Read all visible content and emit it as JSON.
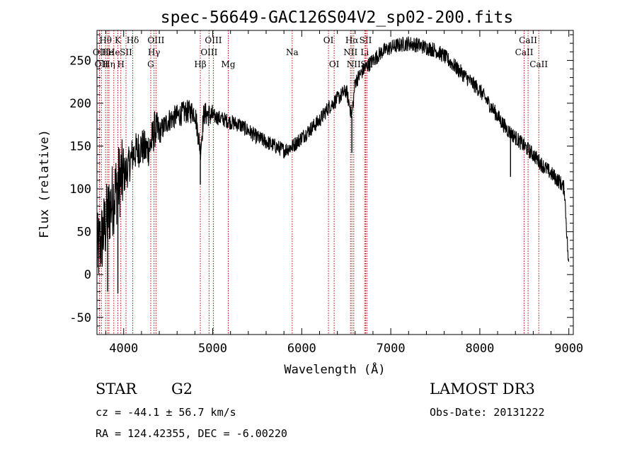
{
  "chart_data": {
    "type": "line",
    "title": "spec-56649-GAC126S04V2_sp02-200.fits",
    "xlabel": "Wavelength (Å)",
    "ylabel": "Flux (relative)",
    "xlim": [
      3700,
      9050
    ],
    "ylim": [
      -70,
      285
    ],
    "x_ticks": [
      4000,
      5000,
      6000,
      7000,
      8000,
      9000
    ],
    "y_ticks": [
      -50,
      0,
      50,
      100,
      150,
      200,
      250
    ],
    "grid": false,
    "series": [
      {
        "name": "flux",
        "x": [
          3700,
          3750,
          3800,
          3850,
          3900,
          3950,
          4000,
          4050,
          4100,
          4150,
          4200,
          4250,
          4300,
          4350,
          4400,
          4500,
          4600,
          4700,
          4800,
          4862,
          4900,
          5000,
          5100,
          5200,
          5300,
          5400,
          5500,
          5600,
          5700,
          5800,
          5900,
          6000,
          6100,
          6200,
          6300,
          6400,
          6500,
          6563,
          6600,
          6700,
          6800,
          6900,
          7000,
          7100,
          7200,
          7300,
          7400,
          7500,
          7600,
          7700,
          7800,
          7900,
          8000,
          8100,
          8200,
          8300,
          8400,
          8500,
          8600,
          8700,
          8800,
          8900,
          8950,
          9000
        ],
        "y": [
          25,
          40,
          60,
          80,
          95,
          110,
          115,
          125,
          140,
          145,
          150,
          145,
          150,
          170,
          165,
          180,
          185,
          190,
          190,
          145,
          188,
          185,
          182,
          178,
          175,
          168,
          160,
          155,
          150,
          145,
          150,
          160,
          170,
          180,
          195,
          205,
          215,
          185,
          225,
          240,
          250,
          260,
          265,
          268,
          270,
          268,
          265,
          262,
          255,
          245,
          235,
          225,
          215,
          200,
          185,
          170,
          160,
          150,
          140,
          128,
          118,
          108,
          100,
          5
        ]
      }
    ],
    "absorption_dips": [
      {
        "x": 4861,
        "y": 105
      },
      {
        "x": 6563,
        "y": 142
      },
      {
        "x": 8345,
        "y": 114
      },
      {
        "x": 3820,
        "y": -20
      },
      {
        "x": 3935,
        "y": -22
      }
    ],
    "line_markers": [
      {
        "wavelength": 3728,
        "label": "OII",
        "row": 2
      },
      {
        "wavelength": 3750,
        "label": "OII",
        "row": 3
      },
      {
        "wavelength": 3797,
        "label": "Hθ",
        "row": 1
      },
      {
        "wavelength": 3820,
        "label": "He",
        "row": 2
      },
      {
        "wavelength": 3835,
        "label": "Hη",
        "row": 3
      },
      {
        "wavelength": 3889,
        "label": "He",
        "row": 2
      },
      {
        "wavelength": 3934,
        "label": "K",
        "row": 1
      },
      {
        "wavelength": 3968,
        "label": "H",
        "row": 3
      },
      {
        "wavelength": 4026,
        "label": "SII",
        "row": 2
      },
      {
        "wavelength": 4102,
        "label": "Hδ",
        "row": 1
      },
      {
        "wavelength": 4304,
        "label": "G",
        "row": 3
      },
      {
        "wavelength": 4341,
        "label": "Hγ",
        "row": 2
      },
      {
        "wavelength": 4363,
        "label": "OIII",
        "row": 1
      },
      {
        "wavelength": 4861,
        "label": "Hβ",
        "row": 3
      },
      {
        "wavelength": 4959,
        "label": "OIII",
        "row": 2
      },
      {
        "wavelength": 5007,
        "label": "OIII",
        "row": 1
      },
      {
        "wavelength": 5175,
        "label": "Mg",
        "row": 3
      },
      {
        "wavelength": 5893,
        "label": "Na",
        "row": 2
      },
      {
        "wavelength": 6300,
        "label": "OI",
        "row": 1
      },
      {
        "wavelength": 6364,
        "label": "OI",
        "row": 3
      },
      {
        "wavelength": 6548,
        "label": "NII",
        "row": 2
      },
      {
        "wavelength": 6563,
        "label": "Hα",
        "row": 1
      },
      {
        "wavelength": 6584,
        "label": "NII",
        "row": 3
      },
      {
        "wavelength": 6707,
        "label": "Li",
        "row": 2
      },
      {
        "wavelength": 6717,
        "label": "SII",
        "row": 1
      },
      {
        "wavelength": 6731,
        "label": "SII",
        "row": 3
      },
      {
        "wavelength": 8498,
        "label": "CaII",
        "row": 2
      },
      {
        "wavelength": 8542,
        "label": "CaII",
        "row": 1
      },
      {
        "wavelength": 8662,
        "label": "CaII",
        "row": 3
      }
    ]
  },
  "info": {
    "object_class": "STAR",
    "subclass": "G2",
    "redshift": "cz = -44.1 ± 56.7 km/s",
    "coordinates": "RA = 124.42355, DEC =  -6.00220",
    "survey": "LAMOST DR3",
    "obs_date": "Obs-Date: 20131222"
  }
}
